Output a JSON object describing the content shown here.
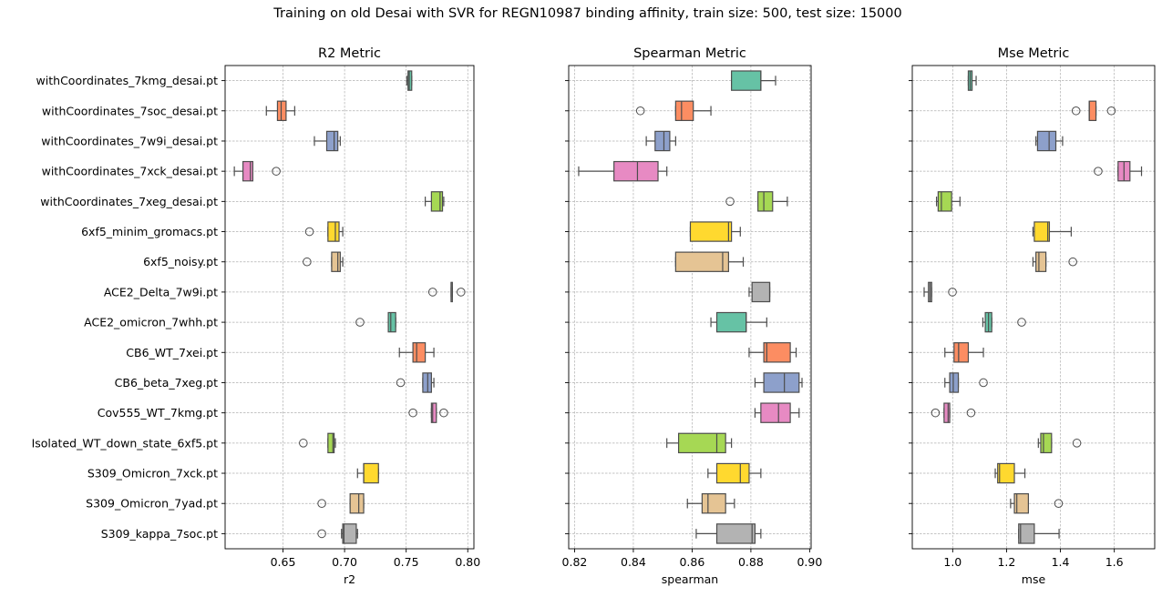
{
  "suptitle": "Training on old Desai with SVR for REGN10987 binding affinity, train size: 500, test size: 15000",
  "chart_data": [
    {
      "type": "box",
      "title": "R2 Metric",
      "xlabel": "r2",
      "xlim": [
        0.603,
        0.805
      ],
      "xticks": [
        0.65,
        0.7,
        0.75,
        0.8
      ],
      "xtick_labels": [
        "0.65",
        "0.70",
        "0.75",
        "0.80"
      ],
      "grid": true,
      "categories": [
        "withCoordinates_7kmg_desai.pt",
        "withCoordinates_7soc_desai.pt",
        "withCoordinates_7w9i_desai.pt",
        "withCoordinates_7xck_desai.pt",
        "withCoordinates_7xeg_desai.pt",
        "6xf5_minim_gromacs.pt",
        "6xf5_noisy.pt",
        "ACE2_Delta_7w9i.pt",
        "ACE2_omicron_7whh.pt",
        "CB6_WT_7xei.pt",
        "CB6_beta_7xeg.pt",
        "Cov555_WT_7kmg.pt",
        "Isolated_WT_down_state_6xf5.pt",
        "S309_Omicron_7xck.pt",
        "S309_Omicron_7yad.pt",
        "S309_kappa_7soc.pt"
      ],
      "boxes": [
        {
          "whislo": 0.7505,
          "q1": 0.7515,
          "med": 0.7525,
          "q3": 0.7545,
          "whishi": 0.7545,
          "fliers": []
        },
        {
          "whislo": 0.6365,
          "q1": 0.6455,
          "med": 0.6485,
          "q3": 0.6525,
          "whishi": 0.6595,
          "fliers": []
        },
        {
          "whislo": 0.6755,
          "q1": 0.6855,
          "med": 0.6915,
          "q3": 0.6945,
          "whishi": 0.6965,
          "fliers": []
        },
        {
          "whislo": 0.6105,
          "q1": 0.6175,
          "med": 0.6235,
          "q3": 0.6255,
          "whishi": 0.6255,
          "fliers": [
            0.6445
          ]
        },
        {
          "whislo": 0.7655,
          "q1": 0.7705,
          "med": 0.7775,
          "q3": 0.7795,
          "whishi": 0.7805,
          "fliers": []
        },
        {
          "whislo": 0.6865,
          "q1": 0.6865,
          "med": 0.6925,
          "q3": 0.6955,
          "whishi": 0.6985,
          "fliers": [
            0.6715
          ]
        },
        {
          "whislo": 0.6895,
          "q1": 0.6895,
          "med": 0.6945,
          "q3": 0.6965,
          "whishi": 0.6985,
          "fliers": [
            0.6695
          ]
        },
        {
          "whislo": 0.7865,
          "q1": 0.7865,
          "med": 0.7865,
          "q3": 0.7875,
          "whishi": 0.7875,
          "fliers": [
            0.7715,
            0.7945
          ]
        },
        {
          "whislo": 0.7355,
          "q1": 0.7355,
          "med": 0.7375,
          "q3": 0.7415,
          "whishi": 0.7415,
          "fliers": [
            0.7125
          ]
        },
        {
          "whislo": 0.7445,
          "q1": 0.7555,
          "med": 0.7585,
          "q3": 0.7655,
          "whishi": 0.7725,
          "fliers": []
        },
        {
          "whislo": 0.7635,
          "q1": 0.7635,
          "med": 0.7675,
          "q3": 0.7705,
          "whishi": 0.7725,
          "fliers": [
            0.7455
          ]
        },
        {
          "whislo": 0.7705,
          "q1": 0.7705,
          "med": 0.7715,
          "q3": 0.7745,
          "whishi": 0.7745,
          "fliers": [
            0.7555,
            0.7805
          ]
        },
        {
          "whislo": 0.6865,
          "q1": 0.6865,
          "med": 0.6905,
          "q3": 0.6915,
          "whishi": 0.6925,
          "fliers": [
            0.6665
          ]
        },
        {
          "whislo": 0.7105,
          "q1": 0.7155,
          "med": 0.7155,
          "q3": 0.7275,
          "whishi": 0.7275,
          "fliers": []
        },
        {
          "whislo": 0.7045,
          "q1": 0.7045,
          "med": 0.7115,
          "q3": 0.7155,
          "whishi": 0.7155,
          "fliers": [
            0.6815
          ]
        },
        {
          "whislo": 0.6975,
          "q1": 0.6985,
          "med": 0.6995,
          "q3": 0.7095,
          "whishi": 0.7105,
          "fliers": [
            0.6815
          ]
        }
      ]
    },
    {
      "type": "box",
      "title": "Spearman Metric",
      "xlabel": "spearman",
      "xlim": [
        0.818,
        0.9005
      ],
      "xticks": [
        0.82,
        0.84,
        0.86,
        0.88,
        0.9
      ],
      "xtick_labels": [
        "0.82",
        "0.84",
        "0.86",
        "0.88",
        "0.90"
      ],
      "grid": true,
      "categories": [
        "withCoordinates_7kmg_desai.pt",
        "withCoordinates_7soc_desai.pt",
        "withCoordinates_7w9i_desai.pt",
        "withCoordinates_7xck_desai.pt",
        "withCoordinates_7xeg_desai.pt",
        "6xf5_minim_gromacs.pt",
        "6xf5_noisy.pt",
        "ACE2_Delta_7w9i.pt",
        "ACE2_omicron_7whh.pt",
        "CB6_WT_7xei.pt",
        "CB6_beta_7xeg.pt",
        "Cov555_WT_7kmg.pt",
        "Isolated_WT_down_state_6xf5.pt",
        "S309_Omicron_7xck.pt",
        "S309_Omicron_7yad.pt",
        "S309_kappa_7soc.pt"
      ],
      "boxes": [
        {
          "whislo": 0.8734,
          "q1": 0.8734,
          "med": 0.8834,
          "q3": 0.8834,
          "whishi": 0.8884,
          "fliers": []
        },
        {
          "whislo": 0.8544,
          "q1": 0.8544,
          "med": 0.8564,
          "q3": 0.8604,
          "whishi": 0.8664,
          "fliers": [
            0.8424
          ]
        },
        {
          "whislo": 0.8444,
          "q1": 0.8474,
          "med": 0.8504,
          "q3": 0.8524,
          "whishi": 0.8544,
          "fliers": []
        },
        {
          "whislo": 0.8214,
          "q1": 0.8334,
          "med": 0.8414,
          "q3": 0.8484,
          "whishi": 0.8514,
          "fliers": []
        },
        {
          "whislo": 0.8824,
          "q1": 0.8824,
          "med": 0.8844,
          "q3": 0.8874,
          "whishi": 0.8924,
          "fliers": [
            0.8729
          ]
        },
        {
          "whislo": 0.8594,
          "q1": 0.8594,
          "med": 0.8724,
          "q3": 0.8734,
          "whishi": 0.8764,
          "fliers": []
        },
        {
          "whislo": 0.8544,
          "q1": 0.8544,
          "med": 0.8704,
          "q3": 0.8724,
          "whishi": 0.8774,
          "fliers": []
        },
        {
          "whislo": 0.8794,
          "q1": 0.8804,
          "med": 0.8864,
          "q3": 0.8864,
          "whishi": 0.8864,
          "fliers": []
        },
        {
          "whislo": 0.8664,
          "q1": 0.8684,
          "med": 0.8784,
          "q3": 0.8784,
          "whishi": 0.8854,
          "fliers": []
        },
        {
          "whislo": 0.8794,
          "q1": 0.8844,
          "med": 0.8854,
          "q3": 0.8934,
          "whishi": 0.8954,
          "fliers": []
        },
        {
          "whislo": 0.8814,
          "q1": 0.8844,
          "med": 0.8914,
          "q3": 0.8964,
          "whishi": 0.8974,
          "fliers": []
        },
        {
          "whislo": 0.8814,
          "q1": 0.8834,
          "med": 0.8894,
          "q3": 0.8934,
          "whishi": 0.8964,
          "fliers": []
        },
        {
          "whislo": 0.8514,
          "q1": 0.8554,
          "med": 0.8684,
          "q3": 0.8714,
          "whishi": 0.8734,
          "fliers": []
        },
        {
          "whislo": 0.8654,
          "q1": 0.8684,
          "med": 0.8764,
          "q3": 0.8794,
          "whishi": 0.8834,
          "fliers": []
        },
        {
          "whislo": 0.8584,
          "q1": 0.8634,
          "med": 0.8654,
          "q3": 0.8714,
          "whishi": 0.8744,
          "fliers": []
        },
        {
          "whislo": 0.8614,
          "q1": 0.8684,
          "med": 0.8804,
          "q3": 0.8814,
          "whishi": 0.8834,
          "fliers": []
        }
      ]
    },
    {
      "type": "box",
      "title": "Mse Metric",
      "xlabel": "mse",
      "xlim": [
        0.85,
        1.75
      ],
      "xticks": [
        1.0,
        1.2,
        1.4,
        1.6
      ],
      "xtick_labels": [
        "1.0",
        "1.2",
        "1.4",
        "1.6"
      ],
      "grid": true,
      "categories": [
        "withCoordinates_7kmg_desai.pt",
        "withCoordinates_7soc_desai.pt",
        "withCoordinates_7w9i_desai.pt",
        "withCoordinates_7xck_desai.pt",
        "withCoordinates_7xeg_desai.pt",
        "6xf5_minim_gromacs.pt",
        "6xf5_noisy.pt",
        "ACE2_Delta_7w9i.pt",
        "ACE2_omicron_7whh.pt",
        "CB6_WT_7xei.pt",
        "CB6_beta_7xeg.pt",
        "Cov555_WT_7kmg.pt",
        "Isolated_WT_down_state_6xf5.pt",
        "S309_Omicron_7xck.pt",
        "S309_Omicron_7yad.pt",
        "S309_kappa_7soc.pt"
      ],
      "boxes": [
        {
          "whislo": 1.058,
          "q1": 1.058,
          "med": 1.065,
          "q3": 1.072,
          "whishi": 1.087,
          "fliers": []
        },
        {
          "whislo": 1.507,
          "q1": 1.507,
          "med": 1.507,
          "q3": 1.532,
          "whishi": 1.532,
          "fliers": [
            1.458,
            1.589
          ]
        },
        {
          "whislo": 1.309,
          "q1": 1.315,
          "med": 1.358,
          "q3": 1.383,
          "whishi": 1.408,
          "fliers": []
        },
        {
          "whislo": 1.614,
          "q1": 1.614,
          "med": 1.636,
          "q3": 1.658,
          "whishi": 1.701,
          "fliers": [
            1.54
          ]
        },
        {
          "whislo": 0.94,
          "q1": 0.946,
          "med": 0.958,
          "q3": 0.996,
          "whishi": 1.027,
          "fliers": []
        },
        {
          "whislo": 1.298,
          "q1": 1.303,
          "med": 1.353,
          "q3": 1.359,
          "whishi": 1.44,
          "fliers": []
        },
        {
          "whislo": 1.298,
          "q1": 1.309,
          "med": 1.32,
          "q3": 1.346,
          "whishi": 1.346,
          "fliers": [
            1.446
          ]
        },
        {
          "whislo": 0.894,
          "q1": 0.91,
          "med": 0.916,
          "q3": 0.922,
          "whishi": 0.922,
          "fliers": [
            0.999
          ]
        },
        {
          "whislo": 1.112,
          "q1": 1.121,
          "med": 1.133,
          "q3": 1.145,
          "whishi": 1.145,
          "fliers": [
            1.256
          ]
        },
        {
          "whislo": 0.971,
          "q1": 1.005,
          "med": 1.022,
          "q3": 1.058,
          "whishi": 1.114,
          "fliers": []
        },
        {
          "whislo": 0.971,
          "q1": 0.989,
          "med": 1.002,
          "q3": 1.021,
          "whishi": 1.021,
          "fliers": [
            1.114
          ]
        },
        {
          "whislo": 0.968,
          "q1": 0.968,
          "med": 0.983,
          "q3": 0.989,
          "whishi": 0.989,
          "fliers": [
            0.936,
            1.068
          ]
        },
        {
          "whislo": 1.318,
          "q1": 1.327,
          "med": 1.337,
          "q3": 1.367,
          "whishi": 1.367,
          "fliers": [
            1.461
          ]
        },
        {
          "whislo": 1.158,
          "q1": 1.167,
          "med": 1.174,
          "q3": 1.229,
          "whishi": 1.268,
          "fliers": []
        },
        {
          "whislo": 1.215,
          "q1": 1.229,
          "med": 1.238,
          "q3": 1.281,
          "whishi": 1.281,
          "fliers": [
            1.393
          ]
        },
        {
          "whislo": 1.245,
          "q1": 1.245,
          "med": 1.252,
          "q3": 1.303,
          "whishi": 1.395,
          "fliers": []
        }
      ]
    }
  ],
  "palette": [
    "#66c2a5",
    "#fc8d62",
    "#8da0cb",
    "#e78ac3",
    "#a6d854",
    "#ffd92f",
    "#e5c494",
    "#b3b3b3"
  ]
}
